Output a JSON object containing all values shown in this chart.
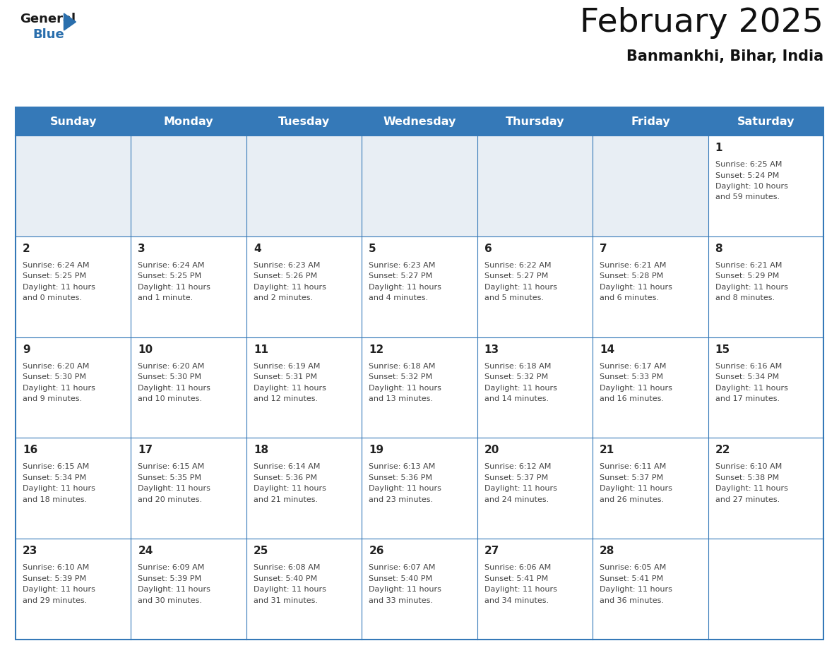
{
  "title": "February 2025",
  "subtitle": "Banmankhi, Bihar, India",
  "days_of_week": [
    "Sunday",
    "Monday",
    "Tuesday",
    "Wednesday",
    "Thursday",
    "Friday",
    "Saturday"
  ],
  "header_bg_color": "#3579b8",
  "header_text_color": "#ffffff",
  "cell_bg_empty_row0": "#e8eef4",
  "cell_bg_normal": "#ffffff",
  "border_color": "#3579b8",
  "day_number_color": "#222222",
  "info_text_color": "#444444",
  "title_color": "#111111",
  "subtitle_color": "#111111",
  "logo_general_color": "#1a1a1a",
  "logo_blue_color": "#2a6fad",
  "logo_triangle_color": "#2a6fad",
  "calendar_data": [
    [
      null,
      null,
      null,
      null,
      null,
      null,
      {
        "day": 1,
        "sunrise": "6:25 AM",
        "sunset": "5:24 PM",
        "daylight_line1": "Daylight: 10 hours",
        "daylight_line2": "and 59 minutes."
      }
    ],
    [
      {
        "day": 2,
        "sunrise": "6:24 AM",
        "sunset": "5:25 PM",
        "daylight_line1": "Daylight: 11 hours",
        "daylight_line2": "and 0 minutes."
      },
      {
        "day": 3,
        "sunrise": "6:24 AM",
        "sunset": "5:25 PM",
        "daylight_line1": "Daylight: 11 hours",
        "daylight_line2": "and 1 minute."
      },
      {
        "day": 4,
        "sunrise": "6:23 AM",
        "sunset": "5:26 PM",
        "daylight_line1": "Daylight: 11 hours",
        "daylight_line2": "and 2 minutes."
      },
      {
        "day": 5,
        "sunrise": "6:23 AM",
        "sunset": "5:27 PM",
        "daylight_line1": "Daylight: 11 hours",
        "daylight_line2": "and 4 minutes."
      },
      {
        "day": 6,
        "sunrise": "6:22 AM",
        "sunset": "5:27 PM",
        "daylight_line1": "Daylight: 11 hours",
        "daylight_line2": "and 5 minutes."
      },
      {
        "day": 7,
        "sunrise": "6:21 AM",
        "sunset": "5:28 PM",
        "daylight_line1": "Daylight: 11 hours",
        "daylight_line2": "and 6 minutes."
      },
      {
        "day": 8,
        "sunrise": "6:21 AM",
        "sunset": "5:29 PM",
        "daylight_line1": "Daylight: 11 hours",
        "daylight_line2": "and 8 minutes."
      }
    ],
    [
      {
        "day": 9,
        "sunrise": "6:20 AM",
        "sunset": "5:30 PM",
        "daylight_line1": "Daylight: 11 hours",
        "daylight_line2": "and 9 minutes."
      },
      {
        "day": 10,
        "sunrise": "6:20 AM",
        "sunset": "5:30 PM",
        "daylight_line1": "Daylight: 11 hours",
        "daylight_line2": "and 10 minutes."
      },
      {
        "day": 11,
        "sunrise": "6:19 AM",
        "sunset": "5:31 PM",
        "daylight_line1": "Daylight: 11 hours",
        "daylight_line2": "and 12 minutes."
      },
      {
        "day": 12,
        "sunrise": "6:18 AM",
        "sunset": "5:32 PM",
        "daylight_line1": "Daylight: 11 hours",
        "daylight_line2": "and 13 minutes."
      },
      {
        "day": 13,
        "sunrise": "6:18 AM",
        "sunset": "5:32 PM",
        "daylight_line1": "Daylight: 11 hours",
        "daylight_line2": "and 14 minutes."
      },
      {
        "day": 14,
        "sunrise": "6:17 AM",
        "sunset": "5:33 PM",
        "daylight_line1": "Daylight: 11 hours",
        "daylight_line2": "and 16 minutes."
      },
      {
        "day": 15,
        "sunrise": "6:16 AM",
        "sunset": "5:34 PM",
        "daylight_line1": "Daylight: 11 hours",
        "daylight_line2": "and 17 minutes."
      }
    ],
    [
      {
        "day": 16,
        "sunrise": "6:15 AM",
        "sunset": "5:34 PM",
        "daylight_line1": "Daylight: 11 hours",
        "daylight_line2": "and 18 minutes."
      },
      {
        "day": 17,
        "sunrise": "6:15 AM",
        "sunset": "5:35 PM",
        "daylight_line1": "Daylight: 11 hours",
        "daylight_line2": "and 20 minutes."
      },
      {
        "day": 18,
        "sunrise": "6:14 AM",
        "sunset": "5:36 PM",
        "daylight_line1": "Daylight: 11 hours",
        "daylight_line2": "and 21 minutes."
      },
      {
        "day": 19,
        "sunrise": "6:13 AM",
        "sunset": "5:36 PM",
        "daylight_line1": "Daylight: 11 hours",
        "daylight_line2": "and 23 minutes."
      },
      {
        "day": 20,
        "sunrise": "6:12 AM",
        "sunset": "5:37 PM",
        "daylight_line1": "Daylight: 11 hours",
        "daylight_line2": "and 24 minutes."
      },
      {
        "day": 21,
        "sunrise": "6:11 AM",
        "sunset": "5:37 PM",
        "daylight_line1": "Daylight: 11 hours",
        "daylight_line2": "and 26 minutes."
      },
      {
        "day": 22,
        "sunrise": "6:10 AM",
        "sunset": "5:38 PM",
        "daylight_line1": "Daylight: 11 hours",
        "daylight_line2": "and 27 minutes."
      }
    ],
    [
      {
        "day": 23,
        "sunrise": "6:10 AM",
        "sunset": "5:39 PM",
        "daylight_line1": "Daylight: 11 hours",
        "daylight_line2": "and 29 minutes."
      },
      {
        "day": 24,
        "sunrise": "6:09 AM",
        "sunset": "5:39 PM",
        "daylight_line1": "Daylight: 11 hours",
        "daylight_line2": "and 30 minutes."
      },
      {
        "day": 25,
        "sunrise": "6:08 AM",
        "sunset": "5:40 PM",
        "daylight_line1": "Daylight: 11 hours",
        "daylight_line2": "and 31 minutes."
      },
      {
        "day": 26,
        "sunrise": "6:07 AM",
        "sunset": "5:40 PM",
        "daylight_line1": "Daylight: 11 hours",
        "daylight_line2": "and 33 minutes."
      },
      {
        "day": 27,
        "sunrise": "6:06 AM",
        "sunset": "5:41 PM",
        "daylight_line1": "Daylight: 11 hours",
        "daylight_line2": "and 34 minutes."
      },
      {
        "day": 28,
        "sunrise": "6:05 AM",
        "sunset": "5:41 PM",
        "daylight_line1": "Daylight: 11 hours",
        "daylight_line2": "and 36 minutes."
      },
      null
    ]
  ]
}
